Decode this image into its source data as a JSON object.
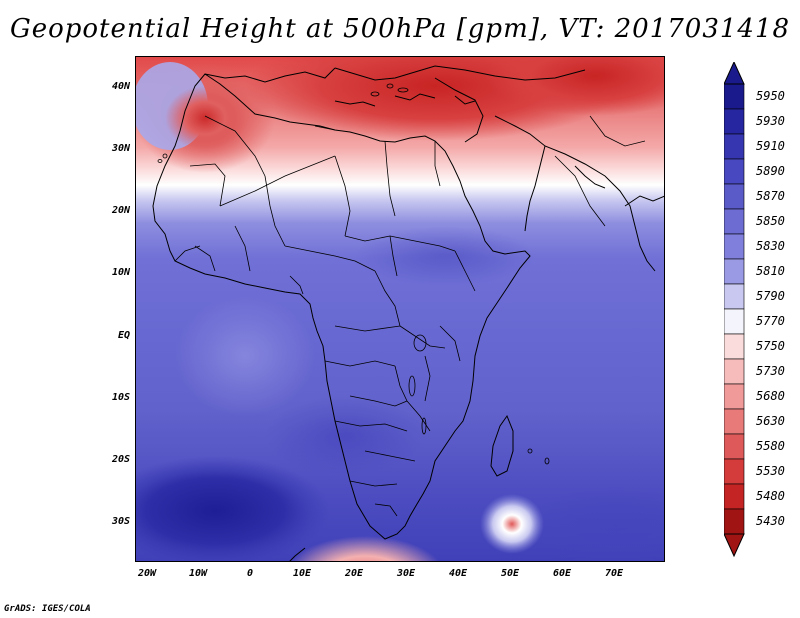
{
  "title": "Geopotential Height at 500hPa [gpm], VT: 2017031418",
  "credit": "GrADS: IGES/COLA",
  "y_ticks": [
    "40N",
    "30N",
    "20N",
    "10N",
    "EQ",
    "10S",
    "20S",
    "30S"
  ],
  "x_ticks": [
    "20W",
    "10W",
    "0",
    "10E",
    "20E",
    "30E",
    "40E",
    "50E",
    "60E",
    "70E"
  ],
  "colorbar": {
    "levels": [
      "5950",
      "5930",
      "5910",
      "5890",
      "5870",
      "5850",
      "5830",
      "5810",
      "5790",
      "5770",
      "5750",
      "5730",
      "5680",
      "5630",
      "5580",
      "5530",
      "5480",
      "5430"
    ],
    "colors": [
      "#1a1a8c",
      "#2626a0",
      "#3636b0",
      "#4848c0",
      "#5a5ac8",
      "#6c6cd2",
      "#8080dc",
      "#9a9ae4",
      "#c8c8f0",
      "#f4f4fc",
      "#fbdcdc",
      "#f6bcbc",
      "#f09a9a",
      "#e87a7a",
      "#de5a5a",
      "#d43c3c",
      "#c42424",
      "#a01414"
    ],
    "top_arrow_color": "#1a1a8c",
    "bottom_arrow_color": "#a01414"
  },
  "chart_data": {
    "type": "heatmap",
    "title": "Geopotential Height at 500hPa [gpm], VT: 2017031418",
    "variable": "Geopotential Height at 500hPa",
    "unit": "gpm",
    "valid_time": "2017031418",
    "x_range": [
      -23,
      80
    ],
    "y_range": [
      -37,
      45
    ],
    "x_ticks": [
      "20W",
      "10W",
      "0",
      "10E",
      "20E",
      "30E",
      "40E",
      "50E",
      "60E",
      "70E"
    ],
    "y_ticks": [
      "40N",
      "30N",
      "20N",
      "10N",
      "EQ",
      "10S",
      "20S",
      "30S"
    ],
    "levels": [
      5430,
      5480,
      5530,
      5580,
      5630,
      5680,
      5730,
      5750,
      5770,
      5790,
      5810,
      5830,
      5850,
      5870,
      5890,
      5910,
      5930,
      5950
    ]
  }
}
